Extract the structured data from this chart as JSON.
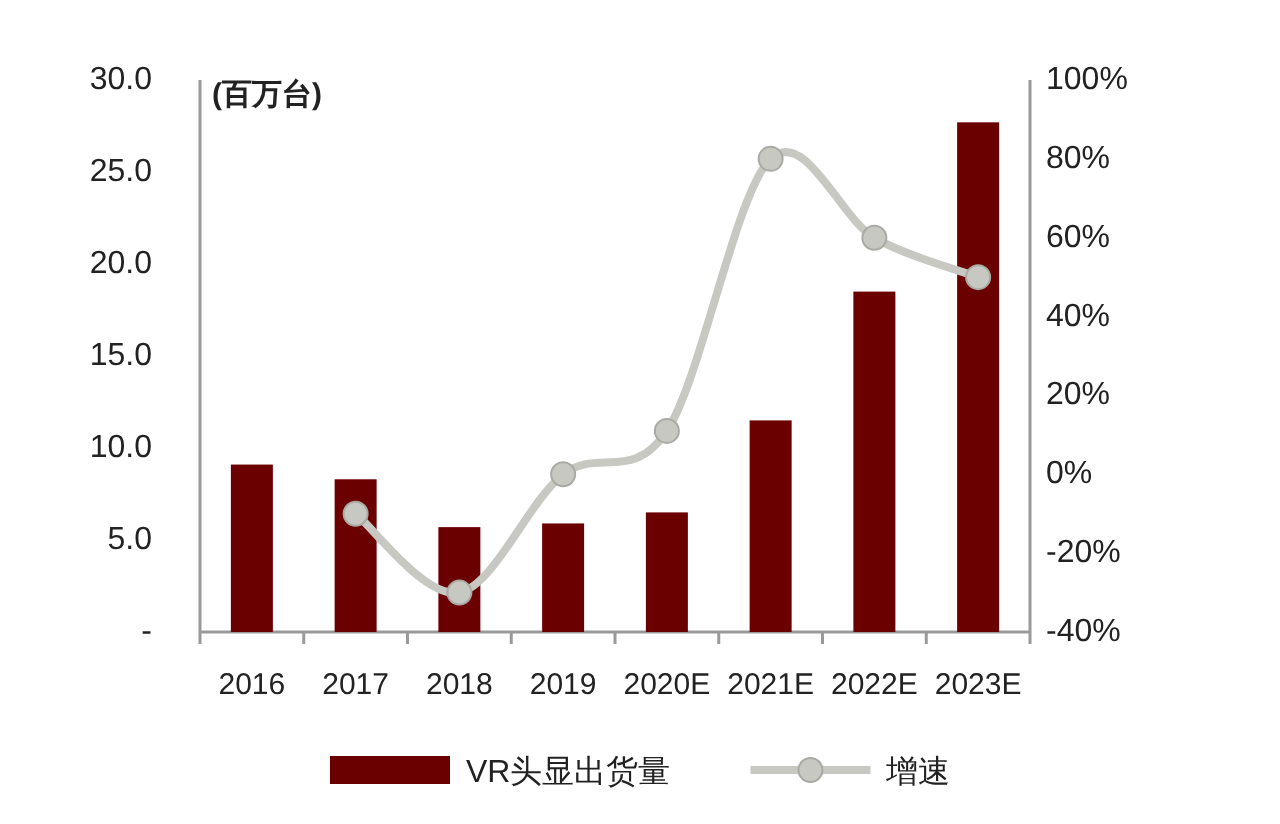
{
  "chart_data": {
    "type": "bar",
    "categories": [
      "2016",
      "2017",
      "2018",
      "2019",
      "2020E",
      "2021E",
      "2022E",
      "2023E"
    ],
    "ylabel": "(百万台)",
    "ylim": [
      0,
      30
    ],
    "yticks": [
      {
        "value": 0,
        "label": "-"
      },
      {
        "value": 5,
        "label": "5.0"
      },
      {
        "value": 10,
        "label": "10.0"
      },
      {
        "value": 15,
        "label": "15.0"
      },
      {
        "value": 20,
        "label": "20.0"
      },
      {
        "value": 25,
        "label": "25.0"
      },
      {
        "value": 30,
        "label": "30.0"
      }
    ],
    "y2lim": [
      -40,
      100
    ],
    "y2ticks": [
      {
        "value": -40,
        "label": "-40%"
      },
      {
        "value": -20,
        "label": "-20%"
      },
      {
        "value": 0,
        "label": "0%"
      },
      {
        "value": 20,
        "label": "20%"
      },
      {
        "value": 40,
        "label": "40%"
      },
      {
        "value": 60,
        "label": "60%"
      },
      {
        "value": 80,
        "label": "80%"
      },
      {
        "value": 100,
        "label": "100%"
      }
    ],
    "series": [
      {
        "name": "VR头显出货量",
        "color": "#6b0000",
        "values": [
          9.1,
          8.3,
          5.7,
          5.9,
          6.5,
          11.5,
          18.5,
          27.7
        ]
      },
      {
        "name": "增速",
        "type": "line",
        "axis": "y2",
        "color": "#c8c8c2",
        "values": [
          null,
          -10,
          -30,
          0,
          11,
          80,
          60,
          50
        ]
      }
    ],
    "marker": "circle",
    "legend": "bottom",
    "grid": false
  }
}
